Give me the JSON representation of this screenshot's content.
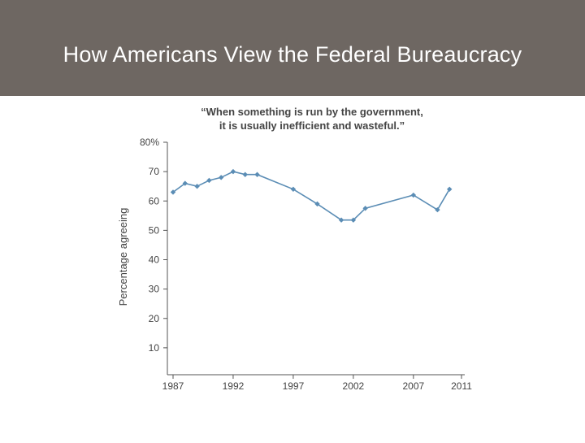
{
  "slide": {
    "title": "How Americans View the Federal Bureaucracy"
  },
  "colors": {
    "title_bar": "#6e6762",
    "series": "#5b8db5",
    "axis": "#555555",
    "text": "#444444"
  },
  "chart_data": {
    "type": "line",
    "subtitle_lines": [
      "“When something is run by the government,",
      "it is usually inefficient and wasteful.”"
    ],
    "ylabel": "Percentage agreeing",
    "xlabel": "",
    "ylim": [
      0,
      80
    ],
    "xlim": [
      1987,
      2011
    ],
    "y_ticks": [
      {
        "value": 80,
        "label": "80%"
      },
      {
        "value": 70,
        "label": "70"
      },
      {
        "value": 60,
        "label": "60"
      },
      {
        "value": 50,
        "label": "50"
      },
      {
        "value": 40,
        "label": "40"
      },
      {
        "value": 30,
        "label": "30"
      },
      {
        "value": 20,
        "label": "20"
      },
      {
        "value": 10,
        "label": "10"
      }
    ],
    "x_ticks": [
      {
        "value": 1987,
        "label": "1987"
      },
      {
        "value": 1992,
        "label": "1992"
      },
      {
        "value": 1997,
        "label": "1997"
      },
      {
        "value": 2002,
        "label": "2002"
      },
      {
        "value": 2007,
        "label": "2007"
      },
      {
        "value": 2011,
        "label": "2011"
      }
    ],
    "grid": false,
    "legend": "none",
    "series": [
      {
        "x": [
          1987,
          1988,
          1989,
          1990,
          1991,
          1992,
          1993,
          1994,
          1997,
          1999,
          2001,
          2002,
          2003,
          2007,
          2009,
          2010
        ],
        "values": [
          63,
          66,
          65,
          67,
          68,
          70,
          69,
          69,
          64,
          59,
          53.5,
          53.5,
          57.5,
          62,
          57,
          64
        ]
      }
    ]
  }
}
